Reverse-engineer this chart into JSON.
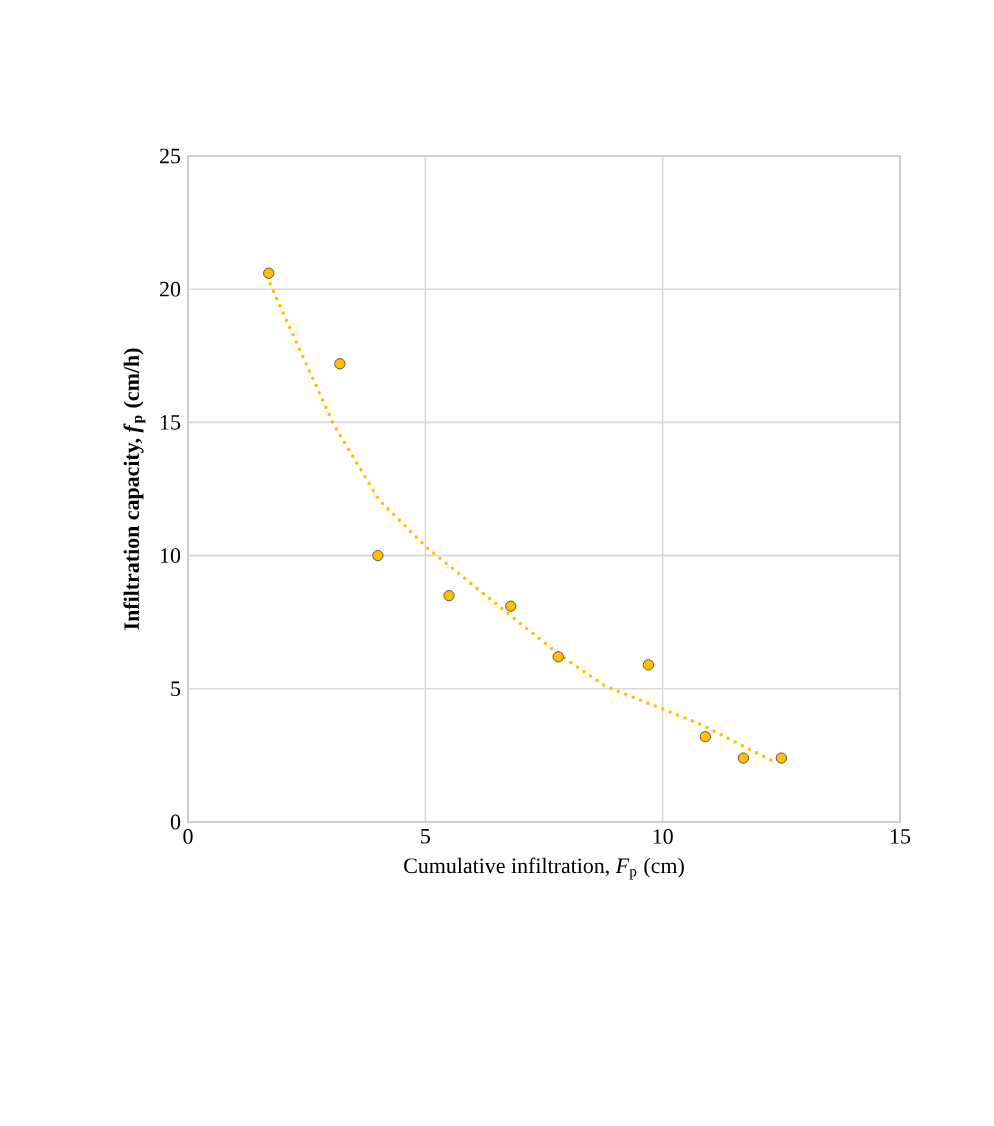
{
  "chart_data": {
    "type": "scatter",
    "xlabel": "Cumulative infiltration, *F*$_{p}$ (cm)",
    "ylabel": "Infiltration capacity, *f*$_{p}$ (cm/h)",
    "xlim": [
      0,
      15
    ],
    "ylim": [
      0,
      25
    ],
    "xticks": [
      0,
      5,
      10,
      15
    ],
    "yticks": [
      0,
      5,
      10,
      15,
      20,
      25
    ],
    "grid": true,
    "series": [
      {
        "color": "#ffc000",
        "marker": "circle",
        "x": [
          1.7,
          3.2,
          4.0,
          5.5,
          6.8,
          7.8,
          9.7,
          10.9,
          11.7,
          12.5
        ],
        "values": [
          20.6,
          17.2,
          10.0,
          8.5,
          8.1,
          6.2,
          5.9,
          3.2,
          2.4,
          2.4
        ]
      },
      {
        "type": "line",
        "color": "#ffc000",
        "marker": "none",
        "line_style": "dotted",
        "x": [
          1.73,
          3.06,
          4.02,
          5.03,
          6.83,
          7.81,
          8.79,
          10.76,
          12.3
        ],
        "values": [
          20.2,
          14.95,
          12.1,
          10.3,
          7.7,
          6.3,
          5.1,
          3.7,
          2.3
        ]
      }
    ]
  }
}
